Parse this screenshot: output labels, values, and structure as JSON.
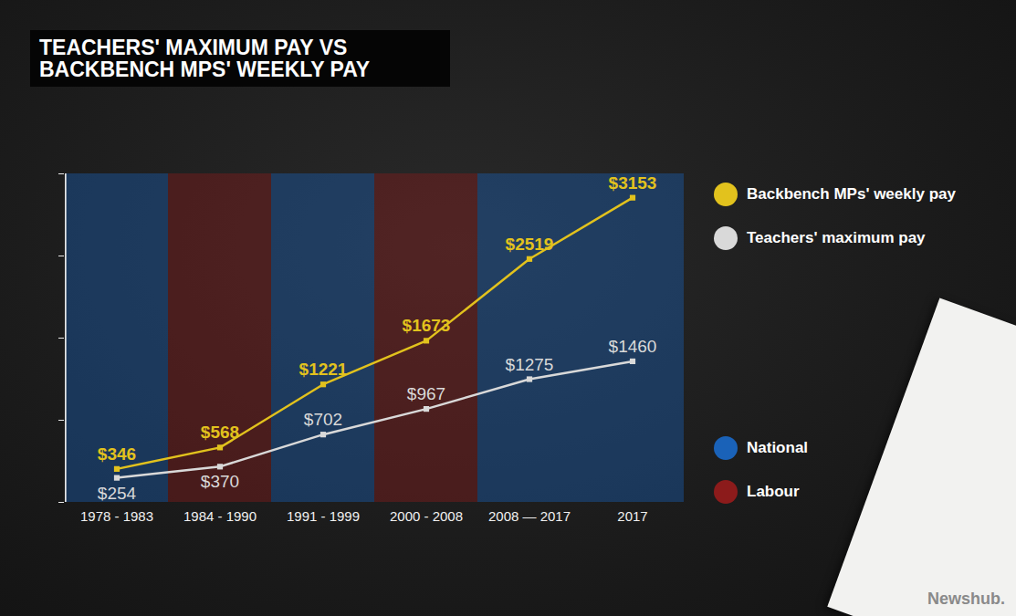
{
  "chart_data": {
    "type": "line",
    "title": "TEACHERS' MAXIMUM PAY VS BACKBENCH MPS' WEEKLY PAY",
    "categories": [
      "1978 - 1983",
      "1984 - 1990",
      "1991 - 1999",
      "2000 - 2008",
      "2008 — 2017",
      "2017"
    ],
    "series": [
      {
        "name": "Backbench MPs' weekly pay",
        "color": "#e2c21d",
        "marker": "square",
        "values": [
          346,
          568,
          1221,
          1673,
          2519,
          3153
        ],
        "value_labels": [
          "$346",
          "$568",
          "$1221",
          "$1673",
          "$2519",
          "$3153"
        ]
      },
      {
        "name": "Teachers' maximum pay",
        "color": "#d9d9d9",
        "marker": "square",
        "values": [
          254,
          370,
          702,
          967,
          1275,
          1460
        ],
        "value_labels": [
          "$254",
          "$370",
          "$702",
          "$967",
          "$1275",
          "$1460"
        ]
      }
    ],
    "shading": {
      "names": [
        "National",
        "Labour",
        "National",
        "Labour",
        "National",
        "National"
      ],
      "legend": [
        {
          "name": "National",
          "color": "#1a62b8"
        },
        {
          "name": "Labour",
          "color": "#8c1b1b"
        }
      ]
    },
    "ylim": [
      0,
      3400
    ],
    "yticks": [
      0,
      850,
      1700,
      2550,
      3400
    ],
    "tick_labels": "x",
    "grid": false,
    "data_labels": true,
    "legend": "right",
    "source": "Newshub."
  }
}
